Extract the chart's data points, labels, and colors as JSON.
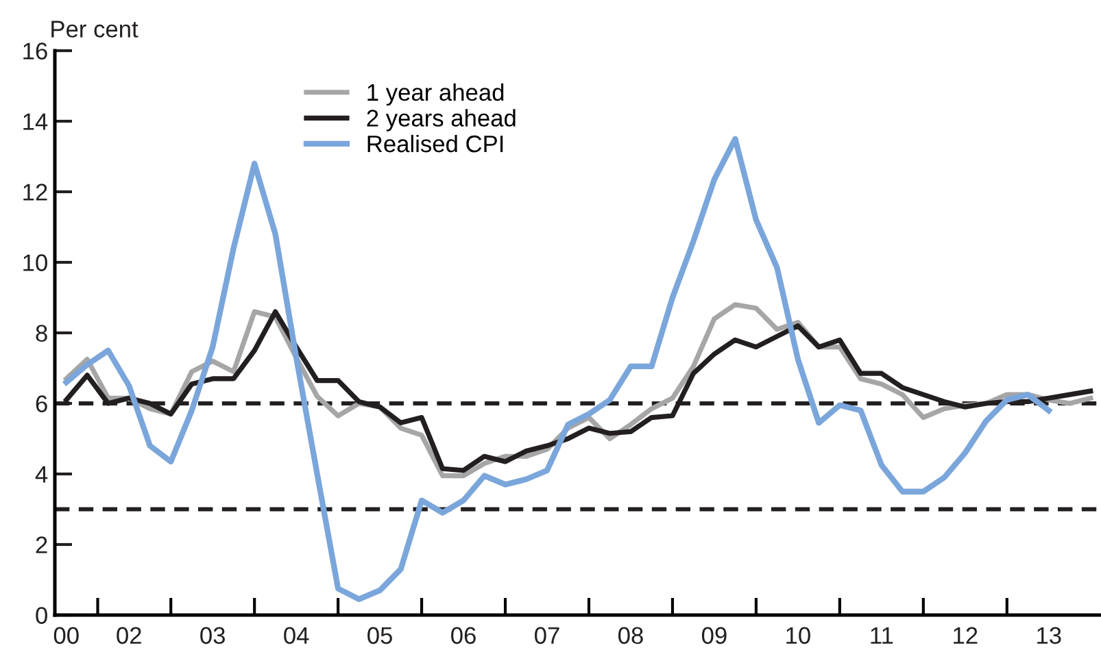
{
  "chart_data": {
    "type": "line",
    "ylabel": "Per cent",
    "categories": [
      "00",
      null,
      null,
      "02",
      null,
      null,
      null,
      "03",
      null,
      null,
      null,
      "04",
      null,
      null,
      null,
      "05",
      null,
      null,
      null,
      "06",
      null,
      null,
      null,
      "07",
      null,
      null,
      null,
      "08",
      null,
      null,
      null,
      "09",
      null,
      null,
      null,
      "10",
      null,
      null,
      null,
      "11",
      null,
      null,
      null,
      "12",
      null,
      null,
      null,
      "13",
      null,
      null
    ],
    "series": [
      {
        "name": "1 year ahead",
        "color": "#a6a6a6",
        "values": [
          6.7,
          7.25,
          6.15,
          6.15,
          5.85,
          5.7,
          6.9,
          7.2,
          6.9,
          8.6,
          8.45,
          7.3,
          6.2,
          5.65,
          6.0,
          5.9,
          5.3,
          5.1,
          3.95,
          3.95,
          4.3,
          4.5,
          4.5,
          4.7,
          5.3,
          5.6,
          5.0,
          5.4,
          5.85,
          6.15,
          7.05,
          8.4,
          8.8,
          8.7,
          8.1,
          8.3,
          7.6,
          7.6,
          6.7,
          6.55,
          6.25,
          5.6,
          5.85,
          5.95,
          6.0,
          6.25,
          6.25,
          6.1,
          6.0,
          6.15
        ]
      },
      {
        "name": "2 years ahead",
        "color": "#231f20",
        "values": [
          6.1,
          6.8,
          6.0,
          6.15,
          6.0,
          5.7,
          6.55,
          6.7,
          6.7,
          7.5,
          8.6,
          7.6,
          6.65,
          6.65,
          6.05,
          5.9,
          5.45,
          5.6,
          4.15,
          4.1,
          4.5,
          4.35,
          4.65,
          4.8,
          5.0,
          5.3,
          5.15,
          5.2,
          5.6,
          5.65,
          6.85,
          7.4,
          7.8,
          7.6,
          7.9,
          8.2,
          7.6,
          7.8,
          6.85,
          6.85,
          6.45,
          6.25,
          6.05,
          5.9,
          6.0,
          6.05,
          6.05,
          6.15,
          6.25,
          6.35
        ]
      },
      {
        "name": "Realised CPI",
        "color": "#7aa6db",
        "values": [
          6.6,
          7.1,
          7.5,
          6.5,
          4.8,
          4.35,
          5.8,
          7.6,
          10.4,
          12.8,
          10.8,
          7.3,
          4.0,
          0.75,
          0.45,
          0.7,
          1.3,
          3.25,
          2.9,
          3.25,
          3.95,
          3.7,
          3.85,
          4.1,
          5.4,
          5.7,
          6.1,
          7.05,
          7.05,
          9.0,
          10.6,
          12.35,
          13.5,
          11.2,
          9.85,
          7.25,
          5.45,
          5.95,
          5.8,
          4.25,
          3.5,
          3.5,
          3.9,
          4.6,
          5.5,
          6.1,
          6.25,
          5.8,
          null,
          null
        ]
      }
    ],
    "ref_lines": [
      {
        "axis": "y",
        "value": 6,
        "color": "#231f20",
        "line_style": "dashed"
      },
      {
        "axis": "y",
        "value": 3,
        "color": "#231f20",
        "line_style": "dashed"
      }
    ],
    "ylim": [
      0,
      16
    ],
    "yticks": [
      0,
      2,
      4,
      6,
      8,
      10,
      12,
      14,
      16
    ],
    "grid": false,
    "legend": "top",
    "line_style": "solid",
    "marker": "none"
  }
}
